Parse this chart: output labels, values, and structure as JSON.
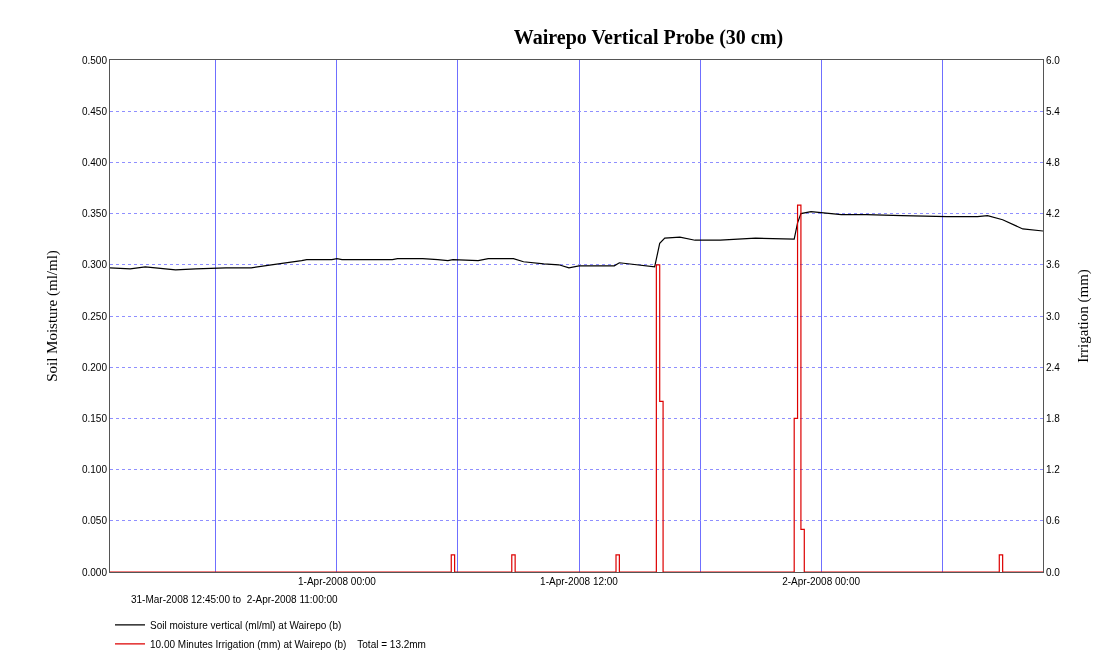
{
  "chart_data": {
    "type": "line",
    "title": "Wairepo Vertical Probe (30 cm)",
    "ylabel": "Soil Moisture (ml/ml)",
    "y2label": "Irrigation (mm)",
    "annotations": [
      "31-Mar-2008 12:45:00 to  2-Apr-2008 11:00:00"
    ],
    "xlim": [
      "2008-03-31T12:45",
      "2008-04-02T11:00"
    ],
    "xticks": [
      {
        "value": "2008-03-31T18:00",
        "label": null
      },
      {
        "value": "2008-04-01T00:00",
        "label": "1-Apr-2008 00:00"
      },
      {
        "value": "2008-04-01T06:00",
        "label": null
      },
      {
        "value": "2008-04-01T12:00",
        "label": "1-Apr-2008 12:00"
      },
      {
        "value": "2008-04-01T18:00",
        "label": null
      },
      {
        "value": "2008-04-02T00:00",
        "label": "2-Apr-2008 00:00"
      },
      {
        "value": "2008-04-02T06:00",
        "label": null
      }
    ],
    "ylim": [
      0,
      0.5
    ],
    "yticks": [
      {
        "value": 0,
        "label": "0.000"
      },
      {
        "value": 0.05,
        "label": "0.050"
      },
      {
        "value": 0.1,
        "label": "0.100"
      },
      {
        "value": 0.15,
        "label": "0.150"
      },
      {
        "value": 0.2,
        "label": "0.200"
      },
      {
        "value": 0.25,
        "label": "0.250"
      },
      {
        "value": 0.3,
        "label": "0.300"
      },
      {
        "value": 0.35,
        "label": "0.350"
      },
      {
        "value": 0.4,
        "label": "0.400"
      },
      {
        "value": 0.45,
        "label": "0.450"
      },
      {
        "value": 0.5,
        "label": "0.500"
      }
    ],
    "y2lim": [
      0,
      6
    ],
    "y2ticks": [
      {
        "value": 0,
        "label": "0.0"
      },
      {
        "value": 0.6,
        "label": "0.6"
      },
      {
        "value": 1.2,
        "label": "1.2"
      },
      {
        "value": 1.8,
        "label": "1.8"
      },
      {
        "value": 2.4,
        "label": "2.4"
      },
      {
        "value": 3,
        "label": "3.0"
      },
      {
        "value": 3.6,
        "label": "3.6"
      },
      {
        "value": 4.2,
        "label": "4.2"
      },
      {
        "value": 4.8,
        "label": "4.8"
      },
      {
        "value": 5.4,
        "label": "5.4"
      },
      {
        "value": 6,
        "label": "6.0"
      }
    ],
    "grid": true,
    "legend": "bottom left",
    "marker": "none",
    "line_style": "solid",
    "series": [
      {
        "name": "Soil moisture vertical (ml/ml) at Wairepo (b)",
        "color": "#000000",
        "x": [
          "2008-03-31T12:45",
          "2008-03-31T13:45",
          "2008-03-31T14:30",
          "2008-03-31T15:00",
          "2008-03-31T16:00",
          "2008-03-31T17:00",
          "2008-03-31T18:30",
          "2008-03-31T19:45",
          "2008-03-31T20:45",
          "2008-03-31T22:15",
          "2008-03-31T22:30",
          "2008-03-31T23:45",
          "2008-04-01T00:00",
          "2008-04-01T00:15",
          "2008-04-01T02:45",
          "2008-04-01T03:00",
          "2008-04-01T04:15",
          "2008-04-01T05:00",
          "2008-04-01T05:30",
          "2008-04-01T05:45",
          "2008-04-01T07:00",
          "2008-04-01T07:30",
          "2008-04-01T08:45",
          "2008-04-01T09:15",
          "2008-04-01T10:15",
          "2008-04-01T11:00",
          "2008-04-01T11:30",
          "2008-04-01T12:00",
          "2008-04-01T13:45",
          "2008-04-01T14:00",
          "2008-04-01T15:45",
          "2008-04-01T16:00",
          "2008-04-01T16:15",
          "2008-04-01T17:00",
          "2008-04-01T17:45",
          "2008-04-01T19:00",
          "2008-04-01T20:45",
          "2008-04-01T22:40",
          "2008-04-01T22:50",
          "2008-04-01T23:00",
          "2008-04-01T23:30",
          "2008-04-02T00:00",
          "2008-04-02T01:00",
          "2008-04-02T02:15",
          "2008-04-02T04:00",
          "2008-04-02T06:15",
          "2008-04-02T07:45",
          "2008-04-02T08:15",
          "2008-04-02T09:00",
          "2008-04-02T10:00",
          "2008-04-02T11:00"
        ],
        "values": [
          0.297,
          0.296,
          0.298,
          0.297,
          0.295,
          0.296,
          0.297,
          0.297,
          0.3,
          0.304,
          0.305,
          0.305,
          0.306,
          0.305,
          0.305,
          0.306,
          0.306,
          0.305,
          0.304,
          0.305,
          0.304,
          0.306,
          0.306,
          0.303,
          0.301,
          0.3,
          0.297,
          0.299,
          0.299,
          0.302,
          0.298,
          0.321,
          0.326,
          0.327,
          0.324,
          0.324,
          0.326,
          0.325,
          0.341,
          0.35,
          0.352,
          0.351,
          0.349,
          0.349,
          0.348,
          0.347,
          0.347,
          0.348,
          0.344,
          0.335,
          0.333
        ]
      },
      {
        "name": "10.00 Minutes Irrigation (mm) at Wairepo (b)    Total = 13.2mm",
        "color": "#dd0000",
        "type": "step",
        "axis": "y2",
        "x": [
          "2008-03-31T12:45",
          "2008-04-01T05:40",
          "2008-04-01T05:50",
          "2008-04-01T08:40",
          "2008-04-01T08:50",
          "2008-04-01T13:50",
          "2008-04-01T14:00",
          "2008-04-01T15:50",
          "2008-04-01T16:00",
          "2008-04-01T16:10",
          "2008-04-01T22:40",
          "2008-04-01T22:50",
          "2008-04-01T23:00",
          "2008-04-01T23:10",
          "2008-04-02T08:50",
          "2008-04-02T09:00",
          "2008-04-02T11:00"
        ],
        "values": [
          0,
          0.2,
          0,
          0.2,
          0,
          0.2,
          0,
          3.6,
          2.0,
          0,
          1.8,
          4.3,
          0.5,
          0,
          0.2,
          0,
          0
        ]
      }
    ]
  }
}
